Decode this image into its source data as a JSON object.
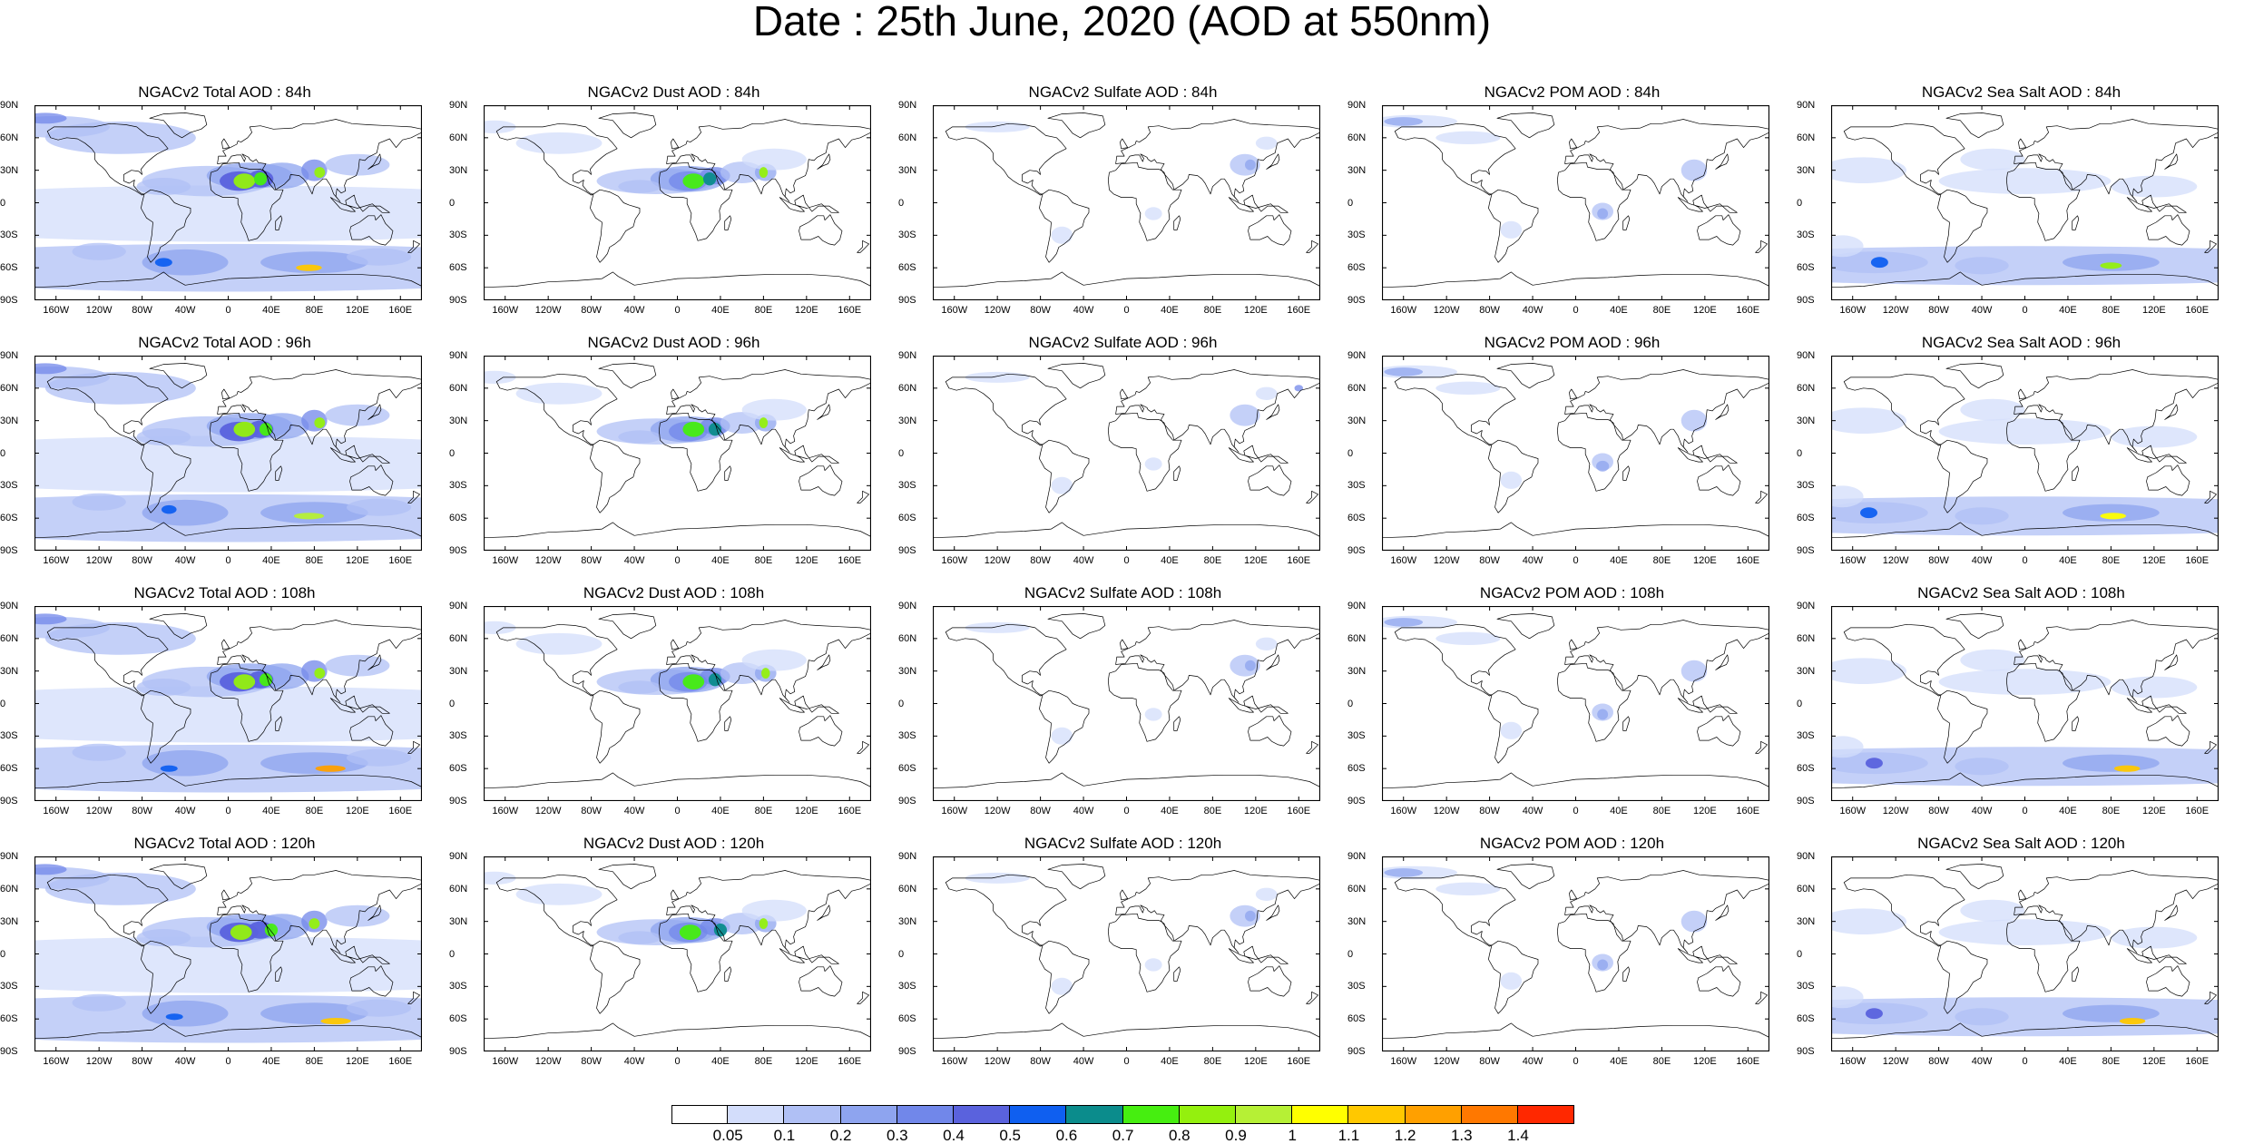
{
  "title": "Date : 25th June, 2020 (AOD at 550nm)",
  "panels": [
    [
      "NGACv2 Total AOD : 84h",
      "NGACv2 Dust AOD : 84h",
      "NGACv2 Sulfate AOD : 84h",
      "NGACv2 POM AOD : 84h",
      "NGACv2 Sea Salt AOD : 84h"
    ],
    [
      "NGACv2 Total AOD : 96h",
      "NGACv2 Dust AOD : 96h",
      "NGACv2 Sulfate AOD : 96h",
      "NGACv2 POM AOD : 96h",
      "NGACv2 Sea Salt AOD : 96h"
    ],
    [
      "NGACv2 Total AOD : 108h",
      "NGACv2 Dust AOD : 108h",
      "NGACv2 Sulfate AOD : 108h",
      "NGACv2 POM AOD : 108h",
      "NGACv2 Sea Salt AOD : 108h"
    ],
    [
      "NGACv2 Total AOD : 120h",
      "NGACv2 Dust AOD : 120h",
      "NGACv2 Sulfate AOD : 120h",
      "NGACv2 POM AOD : 120h",
      "NGACv2 Sea Salt  AOD : 120h"
    ]
  ],
  "axes": {
    "lat_labels": [
      "90N",
      "60N",
      "30N",
      "0",
      "30S",
      "60S",
      "90S"
    ],
    "lon_labels": [
      "160W",
      "120W",
      "80W",
      "40W",
      "0",
      "40E",
      "80E",
      "120E",
      "160E"
    ]
  },
  "colorbar": {
    "labels": [
      "0.05",
      "0.1",
      "0.2",
      "0.3",
      "0.4",
      "0.5",
      "0.6",
      "0.7",
      "0.8",
      "0.9",
      "1",
      "1.1",
      "1.2",
      "1.3",
      "1.4"
    ],
    "colors": [
      "#ffffff",
      "#d3ddfb",
      "#b0c0f5",
      "#8ea4ef",
      "#7187ea",
      "#5a62dd",
      "#0f5ff0",
      "#0b8c8c",
      "#46ee10",
      "#94f00e",
      "#b6f035",
      "#ffff00",
      "#ffc800",
      "#ffa000",
      "#ff7800",
      "#ff2800"
    ]
  },
  "intensity_by_column": [
    {
      "type": "total",
      "level": "high"
    },
    {
      "type": "dust",
      "level": "medium"
    },
    {
      "type": "sulfate",
      "level": "low"
    },
    {
      "type": "pom",
      "level": "low"
    },
    {
      "type": "seasalt",
      "level": "medium"
    }
  ]
}
